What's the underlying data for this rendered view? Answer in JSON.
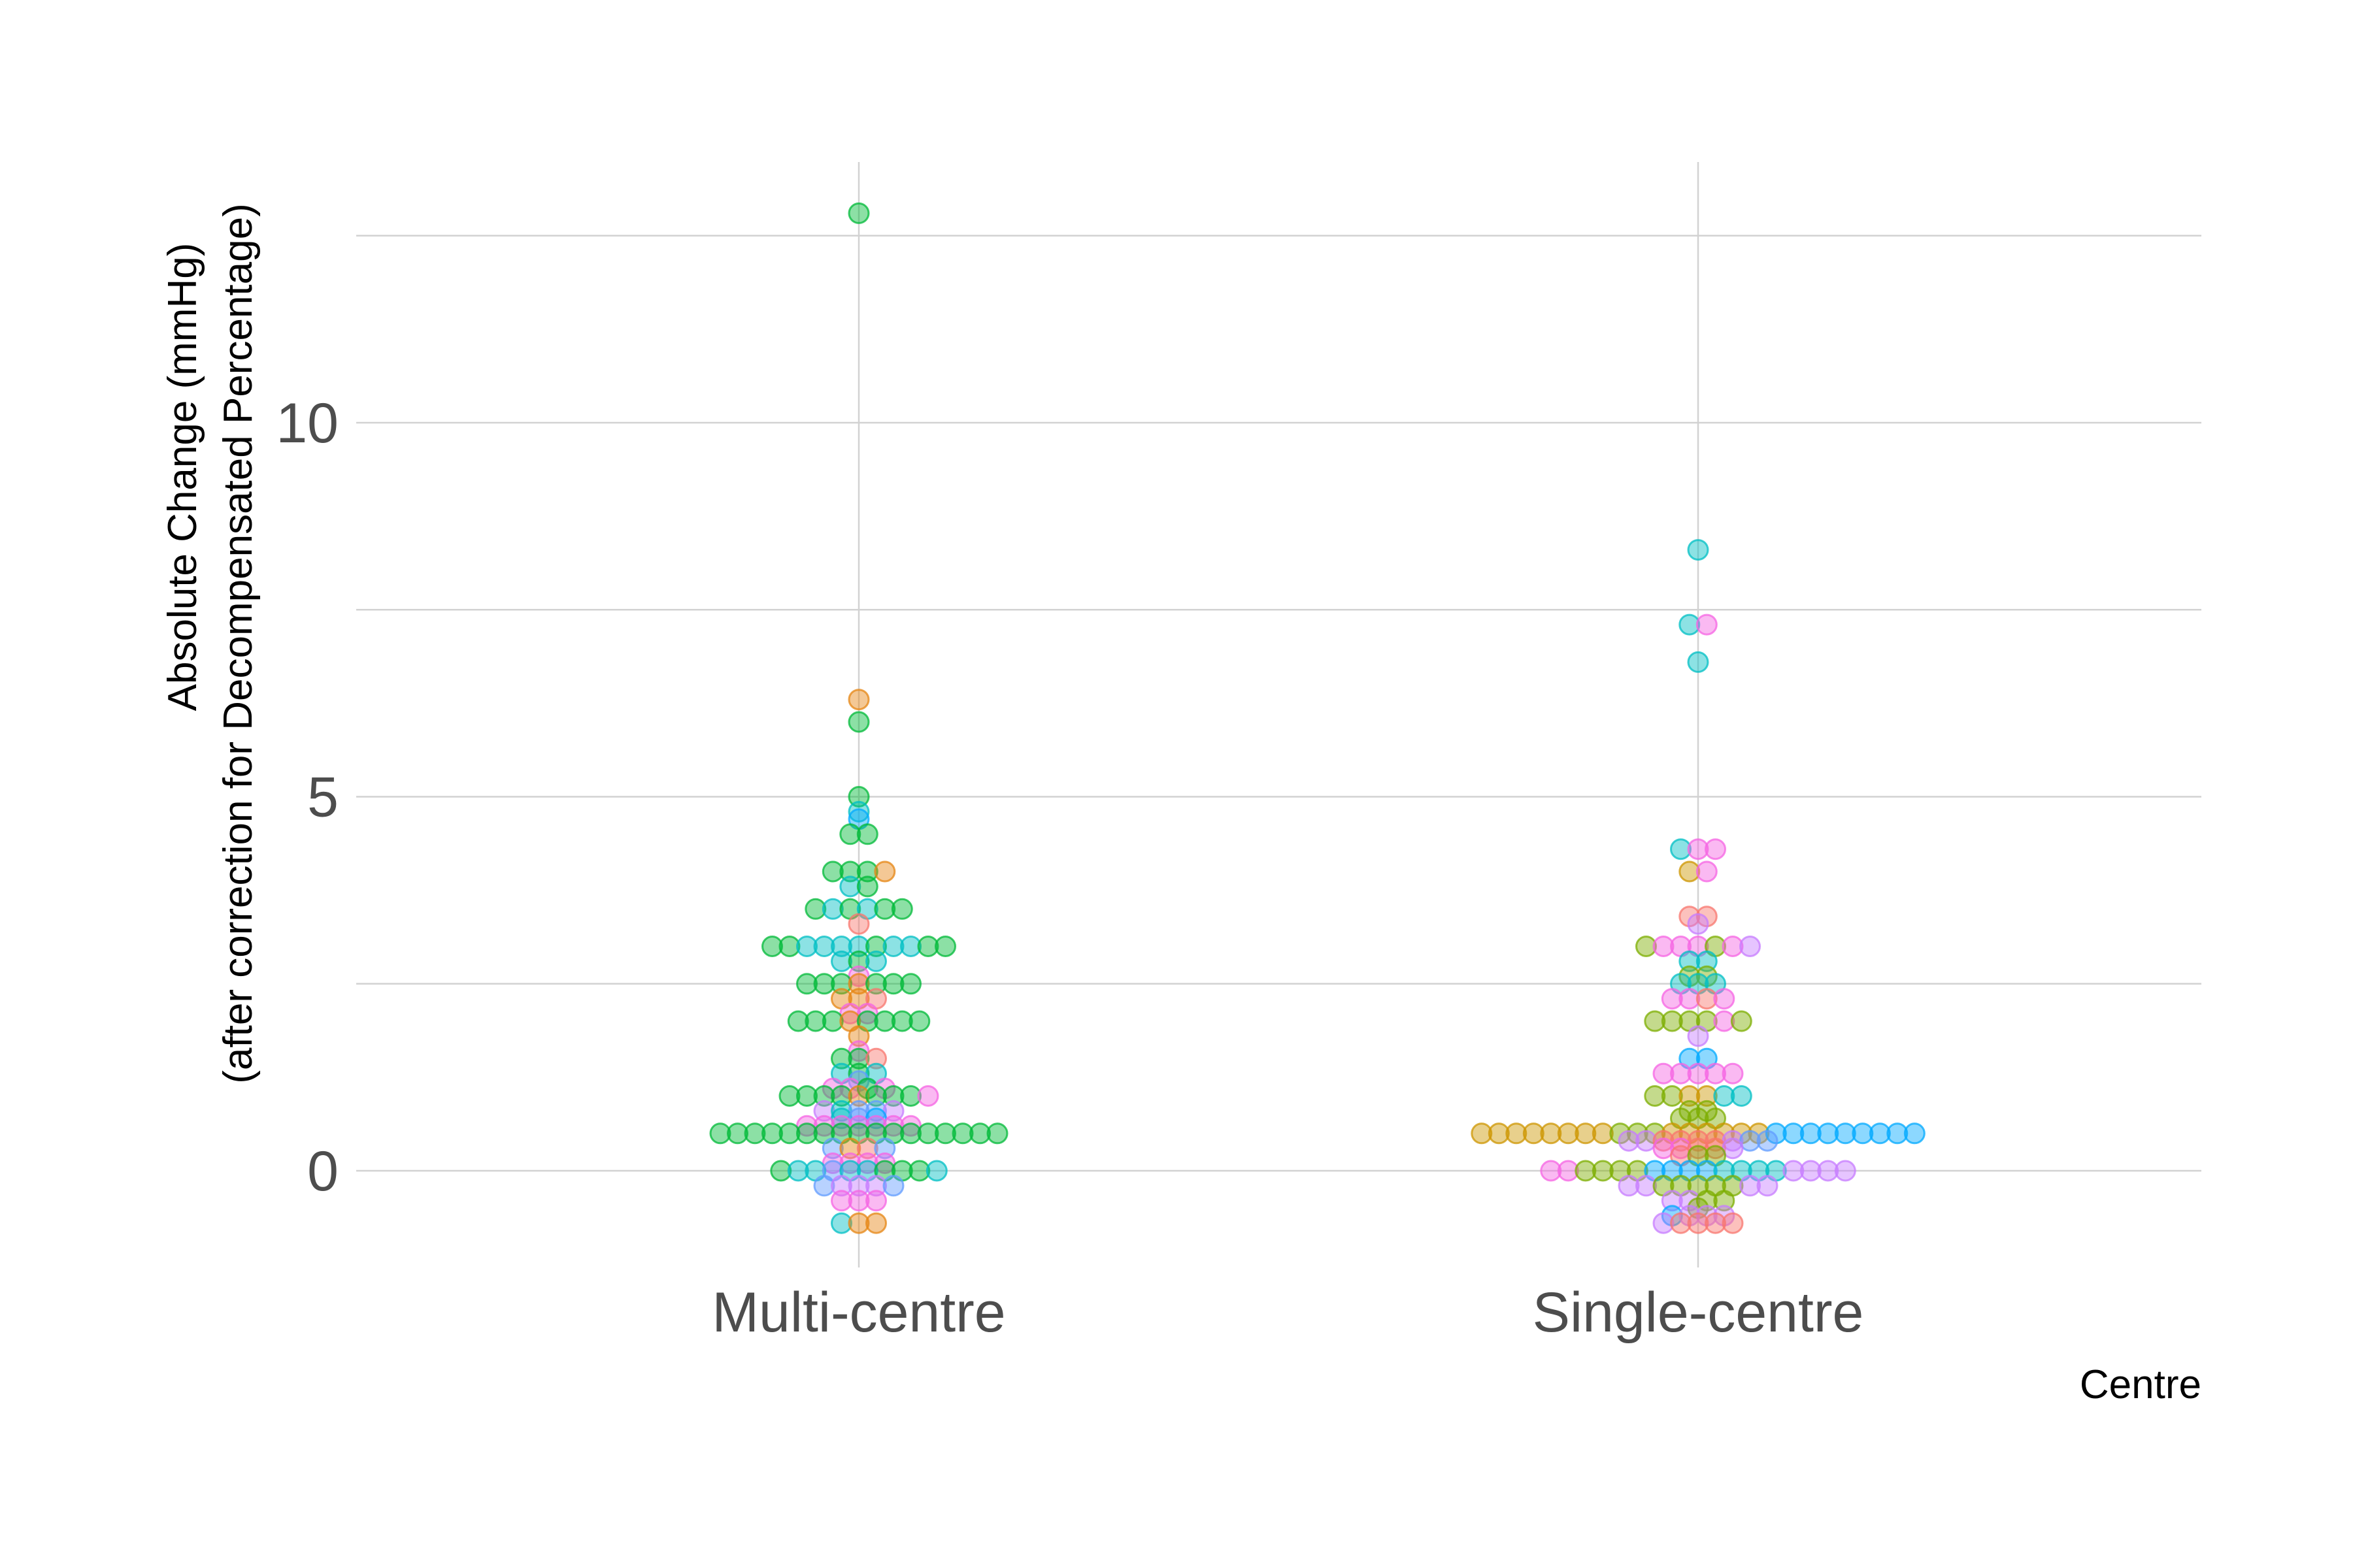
{
  "chart_data": {
    "type": "scatter",
    "style": "beeswarm",
    "title": "",
    "xlabel": "Centre",
    "ylabel": "Absolute Change (mmHg)",
    "ylabel_line2": "(after correction for Decompensated Percentage)",
    "categories": [
      "Multi-centre",
      "Single-centre"
    ],
    "ylim": [
      -1.3,
      13.5
    ],
    "yticks": [
      0,
      5,
      10
    ],
    "grid": true,
    "legend": "none",
    "point_alpha": 0.45,
    "palette": [
      "#00BA38",
      "#00BFC4",
      "#F8766D",
      "#E68613",
      "#F564E3",
      "#C77CFF",
      "#619CFF",
      "#00A9FF",
      "#7CAE00",
      "#CD9600"
    ],
    "groups": [
      {
        "category": "Multi-centre",
        "values": [
          12.8,
          6.3,
          6.0,
          5.0,
          4.8,
          4.7,
          4.5,
          4.5,
          4.0,
          4.0,
          4.0,
          4.0,
          3.8,
          3.8,
          3.5,
          3.5,
          3.5,
          3.5,
          3.5,
          3.5,
          3.3,
          3.0,
          3.0,
          3.0,
          3.0,
          3.0,
          3.0,
          3.0,
          3.0,
          3.0,
          3.0,
          3.0,
          2.8,
          2.8,
          2.8,
          2.6,
          2.5,
          2.5,
          2.5,
          2.5,
          2.5,
          2.5,
          2.5,
          2.3,
          2.3,
          2.3,
          2.1,
          2.1,
          2.0,
          2.0,
          2.0,
          2.0,
          2.0,
          2.0,
          2.0,
          2.0,
          1.8,
          1.6,
          1.5,
          1.5,
          1.5,
          1.3,
          1.3,
          1.3,
          1.2,
          1.1,
          1.1,
          1.1,
          1.1,
          1.0,
          1.0,
          1.0,
          1.0,
          1.0,
          1.0,
          1.0,
          1.0,
          1.0,
          0.8,
          0.8,
          0.8,
          0.8,
          0.8,
          0.7,
          0.7,
          0.7,
          0.6,
          0.6,
          0.6,
          0.6,
          0.6,
          0.6,
          0.6,
          0.5,
          0.5,
          0.5,
          0.5,
          0.5,
          0.5,
          0.5,
          0.5,
          0.5,
          0.5,
          0.5,
          0.5,
          0.5,
          0.5,
          0.5,
          0.5,
          0.5,
          0.3,
          0.3,
          0.3,
          0.3,
          0.1,
          0.1,
          0.1,
          0.1,
          0.0,
          0.0,
          0.0,
          0.0,
          0.0,
          0.0,
          0.0,
          0.0,
          0.0,
          0.0,
          -0.2,
          -0.2,
          -0.2,
          -0.2,
          -0.2,
          -0.4,
          -0.4,
          -0.4,
          -0.7,
          -0.7,
          -0.7
        ],
        "colors": [
          0,
          3,
          0,
          0,
          1,
          7,
          0,
          0,
          0,
          0,
          0,
          3,
          1,
          0,
          0,
          1,
          0,
          1,
          0,
          0,
          2,
          0,
          0,
          1,
          1,
          1,
          1,
          0,
          1,
          1,
          0,
          0,
          1,
          0,
          1,
          4,
          0,
          0,
          0,
          3,
          0,
          0,
          0,
          3,
          3,
          2,
          4,
          4,
          0,
          0,
          0,
          3,
          0,
          0,
          0,
          0,
          3,
          4,
          0,
          0,
          2,
          1,
          0,
          1,
          6,
          4,
          4,
          0,
          4,
          0,
          0,
          0,
          0,
          3,
          0,
          0,
          0,
          4,
          5,
          1,
          6,
          6,
          5,
          1,
          6,
          7,
          4,
          4,
          4,
          4,
          4,
          4,
          4,
          0,
          0,
          0,
          0,
          0,
          0,
          0,
          0,
          0,
          0,
          0,
          0,
          0,
          0,
          0,
          0,
          0,
          6,
          3,
          2,
          6,
          4,
          4,
          4,
          4,
          0,
          1,
          1,
          6,
          1,
          1,
          0,
          0,
          0,
          1,
          6,
          5,
          5,
          5,
          6,
          4,
          4,
          4,
          1,
          3,
          3
        ]
      },
      {
        "category": "Single-centre",
        "values": [
          8.3,
          7.3,
          7.3,
          6.8,
          4.3,
          4.3,
          4.3,
          4.0,
          4.0,
          3.4,
          3.4,
          3.3,
          3.0,
          3.0,
          3.0,
          3.0,
          3.0,
          3.0,
          3.0,
          2.8,
          2.8,
          2.6,
          2.6,
          2.5,
          2.5,
          2.5,
          2.3,
          2.3,
          2.3,
          2.3,
          2.0,
          2.0,
          2.0,
          2.0,
          2.0,
          2.0,
          1.8,
          1.5,
          1.5,
          1.3,
          1.3,
          1.3,
          1.3,
          1.3,
          1.0,
          1.0,
          1.0,
          1.0,
          1.0,
          1.0,
          0.8,
          0.8,
          0.7,
          0.7,
          0.7,
          0.5,
          0.5,
          0.5,
          0.5,
          0.5,
          0.5,
          0.5,
          0.5,
          0.5,
          0.5,
          0.5,
          0.5,
          0.5,
          0.5,
          0.5,
          0.5,
          0.5,
          0.5,
          0.5,
          0.5,
          0.5,
          0.5,
          0.5,
          0.5,
          0.5,
          0.5,
          0.4,
          0.4,
          0.4,
          0.4,
          0.4,
          0.4,
          0.4,
          0.4,
          0.4,
          0.3,
          0.3,
          0.3,
          0.3,
          0.3,
          0.2,
          0.2,
          0.2,
          0.0,
          0.0,
          0.0,
          0.0,
          0.0,
          0.0,
          0.0,
          0.0,
          0.0,
          0.0,
          0.0,
          0.0,
          0.0,
          0.0,
          0.0,
          0.0,
          0.0,
          0.0,
          -0.2,
          -0.2,
          -0.2,
          -0.2,
          -0.2,
          -0.2,
          -0.2,
          -0.2,
          -0.2,
          -0.4,
          -0.4,
          -0.4,
          -0.4,
          -0.5,
          -0.6,
          -0.6,
          -0.6,
          -0.6,
          -0.7,
          -0.7,
          -0.7,
          -0.7,
          -0.7
        ],
        "colors": [
          1,
          1,
          4,
          1,
          1,
          4,
          4,
          9,
          4,
          2,
          2,
          5,
          8,
          4,
          4,
          4,
          8,
          4,
          5,
          1,
          1,
          8,
          8,
          1,
          1,
          1,
          4,
          4,
          2,
          4,
          8,
          8,
          8,
          8,
          4,
          8,
          5,
          7,
          7,
          4,
          4,
          4,
          4,
          4,
          8,
          8,
          9,
          9,
          1,
          1,
          8,
          8,
          8,
          8,
          8,
          9,
          9,
          9,
          9,
          9,
          9,
          9,
          9,
          8,
          8,
          8,
          9,
          9,
          9,
          9,
          9,
          9,
          7,
          7,
          7,
          7,
          7,
          7,
          7,
          7,
          7,
          5,
          5,
          2,
          2,
          2,
          2,
          5,
          6,
          6,
          4,
          4,
          2,
          2,
          5,
          2,
          8,
          8,
          4,
          4,
          8,
          8,
          8,
          8,
          7,
          7,
          7,
          7,
          1,
          1,
          1,
          1,
          5,
          5,
          5,
          5,
          5,
          5,
          8,
          8,
          8,
          8,
          8,
          5,
          5,
          5,
          5,
          8,
          8,
          8,
          7,
          5,
          5,
          5,
          5,
          2,
          2,
          2,
          2,
          2
        ]
      }
    ]
  }
}
